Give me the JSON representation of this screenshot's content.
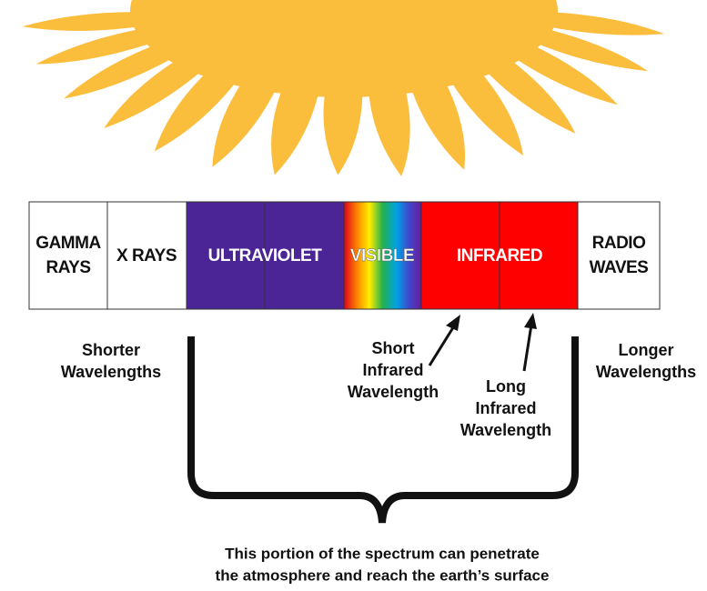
{
  "spectrum": {
    "bands": [
      {
        "lines": [
          "GAMMA",
          "RAYS"
        ]
      },
      {
        "lines": [
          "X RAYS"
        ]
      },
      {
        "lines": [
          "ULTRAVIOLET"
        ]
      },
      {
        "lines": [
          "VISIBLE"
        ]
      },
      {
        "lines": [
          "INFRARED"
        ]
      },
      {
        "lines": [
          "RADIO",
          "WAVES"
        ]
      }
    ]
  },
  "labels": {
    "shorter": [
      "Shorter",
      "Wavelengths"
    ],
    "longer": [
      "Longer",
      "Wavelengths"
    ],
    "short_infrared": [
      "Short",
      "Infrared",
      "Wavelength"
    ],
    "long_infrared": [
      "Long",
      "Infrared",
      "Wavelength"
    ]
  },
  "caption": [
    "This portion of the spectrum can penetrate",
    "the atmosphere and reach the earth’s surface"
  ]
}
